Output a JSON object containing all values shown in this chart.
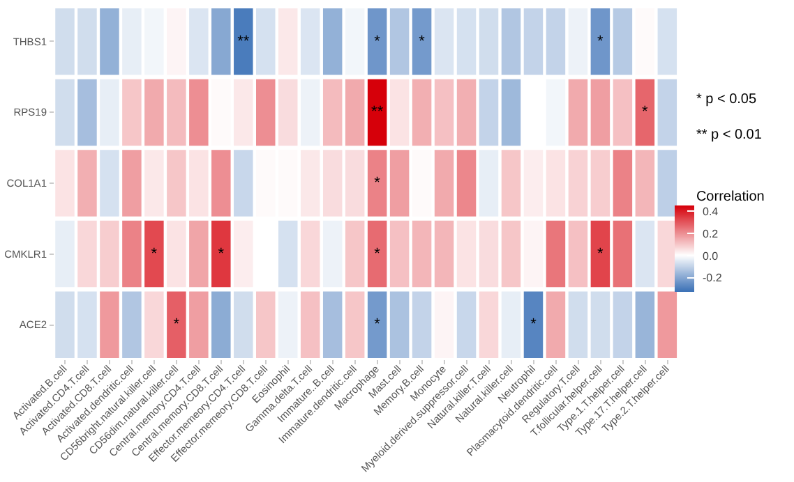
{
  "chart_data": {
    "type": "heatmap",
    "categories": [
      "Activated.B.cell",
      "Activated.CD4.T.cell",
      "Activated.CD8.T.cell",
      "Activated.dendritic.cell",
      "CD56bright.natural.killer.cell",
      "CD56dim.natural.killer.cell",
      "Central.memory.CD4.T.cell",
      "Central.memory.CD8.T.cell",
      "Effector.memeory.CD4.T.cell",
      "Effector.memeory.CD8.T.cell",
      "Eosinophil",
      "Gamma.delta.T.cell",
      "Immature..B.cell",
      "Immature.dendritic.cell",
      "Macrophage",
      "Mast.cell",
      "Memory.B.cell",
      "Monocyte",
      "Myeloid.derived.suppressor.cell",
      "Natural.killer.T.cell",
      "Natural.killer.cell",
      "Neutrophil",
      "Plasmacytoid.dendritic.cell",
      "Regulatory.T.cell",
      "T.follicular.helper.cell",
      "Type.1.T.helper.cell",
      "Type.17.T.helper.cell",
      "Type.2.T.helper.cell"
    ],
    "y_categories": [
      "THBS1",
      "RPS19",
      "COL1A1",
      "CMKLR1",
      "ACE2"
    ],
    "cells": [
      [
        -0.08,
        -0.08,
        -0.18,
        -0.04,
        -0.02,
        0.02,
        -0.06,
        -0.2,
        -0.3,
        -0.07,
        0.04,
        -0.06,
        -0.18,
        -0.02,
        -0.24,
        -0.13,
        -0.23,
        -0.06,
        -0.07,
        -0.08,
        -0.13,
        -0.1,
        -0.1,
        -0.03,
        -0.24,
        -0.12,
        0.01,
        -0.07
      ],
      [
        -0.08,
        -0.15,
        -0.04,
        0.1,
        0.15,
        0.12,
        0.2,
        0.01,
        0.04,
        0.2,
        0.06,
        -0.03,
        0.12,
        0.15,
        0.45,
        0.05,
        0.14,
        0.11,
        0.14,
        -0.1,
        -0.16,
        0.0,
        -0.02,
        0.15,
        0.17,
        0.11,
        0.27,
        -0.1
      ],
      [
        0.05,
        0.14,
        -0.07,
        0.17,
        0.04,
        0.1,
        0.05,
        0.2,
        -0.09,
        0.01,
        0.01,
        0.04,
        0.06,
        0.06,
        0.22,
        0.17,
        0.01,
        0.15,
        0.21,
        -0.04,
        0.1,
        0.03,
        0.05,
        0.08,
        0.09,
        0.22,
        0.13,
        -0.11
      ],
      [
        -0.04,
        0.07,
        0.09,
        0.22,
        0.32,
        0.05,
        0.16,
        0.35,
        0.03,
        0.0,
        -0.07,
        0.07,
        -0.03,
        0.1,
        0.26,
        0.11,
        0.13,
        0.13,
        0.05,
        0.06,
        0.1,
        0.02,
        0.24,
        0.11,
        0.33,
        0.25,
        -0.06,
        0.07
      ],
      [
        -0.08,
        -0.07,
        0.18,
        -0.13,
        0.07,
        0.28,
        0.17,
        -0.19,
        -0.08,
        0.1,
        -0.03,
        0.11,
        -0.15,
        0.1,
        -0.23,
        -0.14,
        -0.1,
        0.02,
        -0.09,
        0.07,
        -0.04,
        -0.28,
        0.15,
        -0.08,
        -0.08,
        -0.1,
        -0.17,
        0.18
      ]
    ],
    "cell_labels": [
      [
        null,
        null,
        null,
        null,
        null,
        null,
        null,
        null,
        "**",
        null,
        null,
        null,
        null,
        null,
        "*",
        null,
        "*",
        null,
        null,
        null,
        null,
        null,
        null,
        null,
        "*",
        null,
        null,
        null
      ],
      [
        null,
        null,
        null,
        null,
        null,
        null,
        null,
        null,
        null,
        null,
        null,
        null,
        null,
        null,
        "**",
        null,
        null,
        null,
        null,
        null,
        null,
        null,
        null,
        null,
        null,
        null,
        "*",
        null
      ],
      [
        null,
        null,
        null,
        null,
        null,
        null,
        null,
        null,
        null,
        null,
        null,
        null,
        null,
        null,
        "*",
        null,
        null,
        null,
        null,
        null,
        null,
        null,
        null,
        null,
        null,
        null,
        null,
        null
      ],
      [
        null,
        null,
        null,
        null,
        "*",
        null,
        null,
        "*",
        null,
        null,
        null,
        null,
        null,
        null,
        "*",
        null,
        null,
        null,
        null,
        null,
        null,
        null,
        null,
        null,
        "*",
        null,
        null,
        null
      ],
      [
        null,
        null,
        null,
        null,
        null,
        "*",
        null,
        null,
        null,
        null,
        null,
        null,
        null,
        null,
        "*",
        null,
        null,
        null,
        null,
        null,
        null,
        "*",
        null,
        null,
        null,
        null,
        null,
        null
      ]
    ],
    "clabel": "Correlation",
    "clim": [
      -0.33,
      0.45
    ],
    "cticks": [
      {
        "value": -0.2,
        "label": "-0.2"
      },
      {
        "value": 0,
        "label": "0.0"
      },
      {
        "value": 0.2,
        "label": "0.2"
      },
      {
        "value": 0.4,
        "label": "0.4"
      }
    ],
    "annotations": [
      "* p < 0.05",
      "** p < 0.01"
    ]
  }
}
